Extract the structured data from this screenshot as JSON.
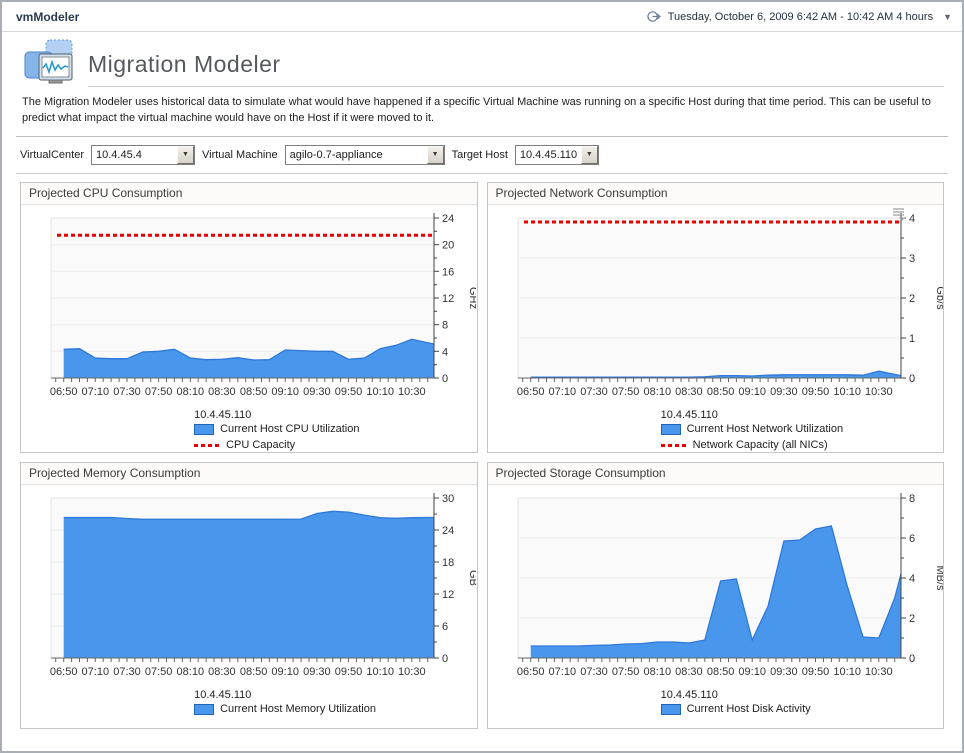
{
  "window": {
    "app_title": "vmModeler",
    "timeframe_label": "Tuesday, October 6, 2009 6:42 AM - 10:42 AM 4 hours"
  },
  "page": {
    "title": "Migration Modeler",
    "description": "The Migration Modeler uses historical data to simulate what would have happened if a specific Virtual Machine was running on a specific Host during that time period. This can be useful to predict what impact the virtual machine would have on the Host if it were moved to it."
  },
  "controls": {
    "virtualcenter_label": "VirtualCenter",
    "virtualcenter_value": "10.4.45.4",
    "vm_label": "Virtual Machine",
    "vm_value": "agilo-0.7-appliance",
    "target_host_label": "Target Host",
    "target_host_value": "10.4.45.110"
  },
  "colors": {
    "area_fill": "#4897ec",
    "area_line": "#2f78d8",
    "capacity_red": "#e60000",
    "axis": "#444444",
    "grid": "#ececec",
    "plot_bg": "#fafafa"
  },
  "chart_data": [
    {
      "type": "area",
      "title": "Projected CPU Consumption",
      "ylabel": "GHz",
      "ylim": [
        0,
        24
      ],
      "y_major_step": 4,
      "y_minor_step": 2,
      "x_domain_minutes": [
        402,
        644
      ],
      "x_tick_label_minutes": [
        410,
        430,
        450,
        470,
        490,
        510,
        530,
        550,
        570,
        590,
        610,
        630
      ],
      "x_tick_label_texts": [
        "06:50",
        "07:10",
        "07:30",
        "07:50",
        "08:10",
        "08:30",
        "08:50",
        "09:10",
        "09:30",
        "09:50",
        "10:10",
        "10:30"
      ],
      "host_label": "10.4.45.110",
      "series": [
        {
          "name": "Current Host CPU Utilization",
          "x": [
            410,
            420,
            430,
            440,
            450,
            460,
            470,
            480,
            490,
            500,
            510,
            520,
            530,
            540,
            550,
            560,
            570,
            580,
            590,
            600,
            610,
            620,
            630,
            640,
            644
          ],
          "values": [
            4.3,
            4.4,
            3.0,
            2.9,
            2.9,
            3.9,
            4.0,
            4.3,
            3.0,
            2.75,
            2.8,
            3.05,
            2.7,
            2.75,
            4.2,
            4.1,
            4.0,
            4.0,
            2.8,
            3.0,
            4.4,
            4.9,
            5.8,
            5.3,
            5.1
          ]
        }
      ],
      "capacity_line": {
        "name": "CPU Capacity",
        "value": 21.4
      }
    },
    {
      "type": "area",
      "title": "Projected Network Consumption",
      "ylabel": "Gb/s",
      "ylim": [
        0,
        4
      ],
      "y_major_step": 1,
      "y_minor_step": 0.5,
      "x_domain_minutes": [
        402,
        644
      ],
      "x_tick_label_minutes": [
        410,
        430,
        450,
        470,
        490,
        510,
        530,
        550,
        570,
        590,
        610,
        630
      ],
      "x_tick_label_texts": [
        "06:50",
        "07:10",
        "07:30",
        "07:50",
        "08:10",
        "08:30",
        "08:50",
        "09:10",
        "09:30",
        "09:50",
        "10:10",
        "10:30"
      ],
      "host_label": "10.4.45.110",
      "series": [
        {
          "name": "Current Host Network Utilization",
          "x": [
            410,
            420,
            430,
            440,
            450,
            460,
            470,
            480,
            490,
            500,
            510,
            520,
            530,
            540,
            550,
            560,
            570,
            580,
            590,
            600,
            610,
            620,
            630,
            640,
            644
          ],
          "values": [
            0.02,
            0.02,
            0.02,
            0.02,
            0.02,
            0.02,
            0.02,
            0.02,
            0.02,
            0.02,
            0.02,
            0.03,
            0.06,
            0.06,
            0.05,
            0.07,
            0.08,
            0.08,
            0.08,
            0.08,
            0.08,
            0.07,
            0.17,
            0.09,
            0.06
          ]
        }
      ],
      "capacity_line": {
        "name": "Network Capacity (all NICs)",
        "value": 3.9
      }
    },
    {
      "type": "area",
      "title": "Projected Memory Consumption",
      "ylabel": "GB",
      "ylim": [
        0,
        30
      ],
      "y_major_step": 6,
      "y_minor_step": 3,
      "x_domain_minutes": [
        402,
        644
      ],
      "x_tick_label_minutes": [
        410,
        430,
        450,
        470,
        490,
        510,
        530,
        550,
        570,
        590,
        610,
        630
      ],
      "x_tick_label_texts": [
        "06:50",
        "07:10",
        "07:30",
        "07:50",
        "08:10",
        "08:30",
        "08:50",
        "09:10",
        "09:30",
        "09:50",
        "10:10",
        "10:30"
      ],
      "host_label": "10.4.45.110",
      "series": [
        {
          "name": "Current Host Memory Utilization",
          "x": [
            410,
            420,
            430,
            440,
            450,
            460,
            470,
            480,
            490,
            500,
            510,
            520,
            530,
            540,
            550,
            560,
            570,
            580,
            590,
            600,
            610,
            620,
            630,
            640,
            644
          ],
          "values": [
            26.35,
            26.35,
            26.35,
            26.35,
            26.15,
            26.0,
            26.0,
            26.0,
            26.0,
            26.0,
            26.0,
            26.0,
            26.0,
            26.0,
            26.0,
            26.05,
            27.1,
            27.5,
            27.35,
            26.8,
            26.3,
            26.2,
            26.3,
            26.35,
            26.35
          ]
        }
      ],
      "capacity_line": null
    },
    {
      "type": "area",
      "title": "Projected Storage Consumption",
      "ylabel": "MB/s",
      "ylim": [
        0,
        8
      ],
      "y_major_step": 2,
      "y_minor_step": 1,
      "x_domain_minutes": [
        402,
        644
      ],
      "x_tick_label_minutes": [
        410,
        430,
        450,
        470,
        490,
        510,
        530,
        550,
        570,
        590,
        610,
        630
      ],
      "x_tick_label_texts": [
        "06:50",
        "07:10",
        "07:30",
        "07:50",
        "08:10",
        "08:30",
        "08:50",
        "09:10",
        "09:30",
        "09:50",
        "10:10",
        "10:30"
      ],
      "host_label": "10.4.45.110",
      "series": [
        {
          "name": "Current Host Disk Activity",
          "x": [
            410,
            420,
            430,
            440,
            450,
            460,
            470,
            480,
            490,
            500,
            510,
            520,
            530,
            540,
            550,
            560,
            570,
            580,
            590,
            600,
            610,
            620,
            630,
            640,
            644
          ],
          "values": [
            0.6,
            0.6,
            0.6,
            0.6,
            0.63,
            0.65,
            0.7,
            0.72,
            0.8,
            0.8,
            0.75,
            0.9,
            3.85,
            3.95,
            0.9,
            2.6,
            5.85,
            5.9,
            6.45,
            6.6,
            3.6,
            1.05,
            1.0,
            3.0,
            4.2
          ]
        }
      ],
      "capacity_line": null
    }
  ]
}
